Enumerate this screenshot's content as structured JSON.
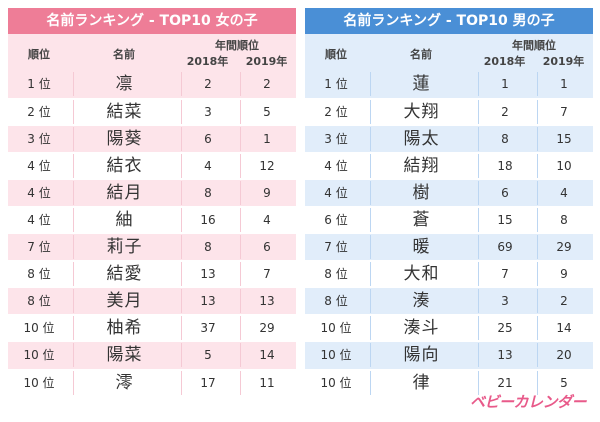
{
  "girls": {
    "title": "名前ランキング - TOP10 女の子",
    "headers": {
      "rank": "順位",
      "name": "名前",
      "yearly": "年間順位",
      "y2018": "2018年",
      "y2019": "2019年"
    },
    "rows": [
      {
        "rank": "1 位",
        "name": "凛",
        "y2018": "2",
        "y2019": "2"
      },
      {
        "rank": "2 位",
        "name": "結菜",
        "y2018": "3",
        "y2019": "5"
      },
      {
        "rank": "3 位",
        "name": "陽葵",
        "y2018": "6",
        "y2019": "1"
      },
      {
        "rank": "4 位",
        "name": "結衣",
        "y2018": "4",
        "y2019": "12"
      },
      {
        "rank": "4 位",
        "name": "結月",
        "y2018": "8",
        "y2019": "9"
      },
      {
        "rank": "4 位",
        "name": "紬",
        "y2018": "16",
        "y2019": "4"
      },
      {
        "rank": "7 位",
        "name": "莉子",
        "y2018": "8",
        "y2019": "6"
      },
      {
        "rank": "8 位",
        "name": "結愛",
        "y2018": "13",
        "y2019": "7"
      },
      {
        "rank": "8 位",
        "name": "美月",
        "y2018": "13",
        "y2019": "13"
      },
      {
        "rank": "10 位",
        "name": "柚希",
        "y2018": "37",
        "y2019": "29"
      },
      {
        "rank": "10 位",
        "name": "陽菜",
        "y2018": "5",
        "y2019": "14"
      },
      {
        "rank": "10 位",
        "name": "澪",
        "y2018": "17",
        "y2019": "11"
      }
    ]
  },
  "boys": {
    "title": "名前ランキング - TOP10 男の子",
    "headers": {
      "rank": "順位",
      "name": "名前",
      "yearly": "年間順位",
      "y2018": "2018年",
      "y2019": "2019年"
    },
    "rows": [
      {
        "rank": "1 位",
        "name": "蓮",
        "y2018": "1",
        "y2019": "1"
      },
      {
        "rank": "2 位",
        "name": "大翔",
        "y2018": "2",
        "y2019": "7"
      },
      {
        "rank": "3 位",
        "name": "陽太",
        "y2018": "8",
        "y2019": "15"
      },
      {
        "rank": "4 位",
        "name": "結翔",
        "y2018": "18",
        "y2019": "10"
      },
      {
        "rank": "4 位",
        "name": "樹",
        "y2018": "6",
        "y2019": "4"
      },
      {
        "rank": "6 位",
        "name": "蒼",
        "y2018": "15",
        "y2019": "8"
      },
      {
        "rank": "7 位",
        "name": "暖",
        "y2018": "69",
        "y2019": "29"
      },
      {
        "rank": "8 位",
        "name": "大和",
        "y2018": "7",
        "y2019": "9"
      },
      {
        "rank": "8 位",
        "name": "湊",
        "y2018": "3",
        "y2019": "2"
      },
      {
        "rank": "10 位",
        "name": "湊斗",
        "y2018": "25",
        "y2019": "14"
      },
      {
        "rank": "10 位",
        "name": "陽向",
        "y2018": "13",
        "y2019": "20"
      },
      {
        "rank": "10 位",
        "name": "律",
        "y2018": "21",
        "y2019": "5"
      }
    ]
  },
  "logo": {
    "text": "ベビーカレンダー"
  },
  "colors": {
    "girls_accent": "#ee7d97",
    "girls_band": "#fde4ea",
    "boys_accent": "#4a8fd6",
    "boys_band": "#e1edfa",
    "logo": "#e85a8a"
  }
}
